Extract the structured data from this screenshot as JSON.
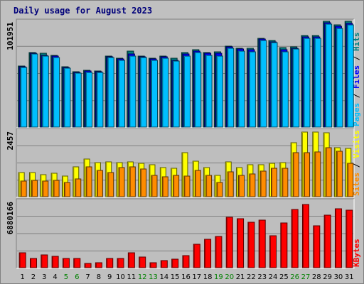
{
  "chart_data": {
    "type": "bar",
    "title": "Daily usage for August 2023",
    "categories": [
      "1",
      "2",
      "3",
      "4",
      "5",
      "6",
      "7",
      "8",
      "9",
      "10",
      "11",
      "12",
      "13",
      "14",
      "15",
      "16",
      "17",
      "18",
      "19",
      "20",
      "21",
      "22",
      "23",
      "24",
      "25",
      "26",
      "27",
      "28",
      "29",
      "30",
      "31"
    ],
    "weekend_days": [
      "5",
      "6",
      "12",
      "13",
      "19",
      "20",
      "26",
      "27"
    ],
    "panels": [
      {
        "name": "hits-files-pages",
        "scale_label": "101951",
        "axis_max": 128000,
        "legend": [
          "Pages",
          "Files",
          "Hits"
        ],
        "series": [
          {
            "name": "Hits",
            "color": "#008080",
            "values": [
              73000,
              89000,
              88000,
              86000,
              72000,
              66000,
              68000,
              67000,
              85000,
              82000,
              91000,
              85000,
              82000,
              85000,
              82000,
              89000,
              92000,
              89000,
              90000,
              97000,
              94000,
              94000,
              106000,
              103000,
              95000,
              96000,
              109000,
              109000,
              126000,
              122000,
              126000
            ]
          },
          {
            "name": "Files",
            "color": "#0000ff",
            "values": [
              72000,
              88000,
              86000,
              85000,
              71000,
              65000,
              67000,
              66000,
              84000,
              81000,
              87000,
              84000,
              81000,
              84000,
              80000,
              87000,
              91000,
              88000,
              88000,
              96000,
              93000,
              92000,
              105000,
              102000,
              92000,
              94000,
              108000,
              108000,
              125000,
              120000,
              124000
            ]
          },
          {
            "name": "Pages",
            "color": "#00bfff",
            "values": [
              71000,
              87000,
              85000,
              83000,
              70000,
              64000,
              65000,
              65000,
              83000,
              80000,
              85000,
              83000,
              80000,
              82000,
              79000,
              85000,
              89000,
              86000,
              85000,
              94000,
              91000,
              90000,
              103000,
              101000,
              90000,
              93000,
              106000,
              106000,
              123000,
              118000,
              122000
            ]
          }
        ]
      },
      {
        "name": "visits-sites",
        "scale_label": "2457",
        "axis_max": 2700,
        "legend": [
          "Sites",
          "Visits"
        ],
        "series": [
          {
            "name": "Visits",
            "color": "#ffff00",
            "values": [
              960,
              960,
              880,
              930,
              820,
              1200,
              1500,
              1360,
              1390,
              1360,
              1400,
              1330,
              1270,
              1160,
              1150,
              1760,
              1430,
              1160,
              860,
              1380,
              1160,
              1270,
              1290,
              1340,
              1350,
              2150,
              2600,
              2600,
              2570,
              1960,
              1930
            ]
          },
          {
            "name": "Sites",
            "color": "#ff8c00",
            "values": [
              630,
              650,
              620,
              650,
              560,
              700,
              1200,
              1040,
              960,
              1160,
              1200,
              1100,
              850,
              800,
              860,
              810,
              1050,
              850,
              560,
              1000,
              850,
              900,
              1030,
              1130,
              1130,
              1770,
              1770,
              1790,
              1950,
              1830,
              1340
            ]
          }
        ]
      },
      {
        "name": "kbytes",
        "scale_label": "6880166",
        "axis_max": 9330000,
        "legend": [
          "KBytes"
        ],
        "series": [
          {
            "name": "KBytes",
            "color": "#ff0000",
            "values": [
              2000000,
              1300000,
              1760000,
              1530000,
              1300000,
              1260000,
              630000,
              690000,
              1310000,
              1220000,
              2060000,
              1460000,
              690000,
              990000,
              1210000,
              1670000,
              3170000,
              3880000,
              4230000,
              6910000,
              6720000,
              6180000,
              6490000,
              4370000,
              6110000,
              8010000,
              8620000,
              5770000,
              7220000,
              8100000,
              7890000
            ]
          }
        ]
      }
    ]
  },
  "colors": {
    "background": "#c0c0c0",
    "plot_background": "#bebebe",
    "grid": "#808080",
    "title": "#00007a",
    "weekday_label": "#000000",
    "weekend_label": "#008000",
    "legend_separator": "#000000"
  }
}
